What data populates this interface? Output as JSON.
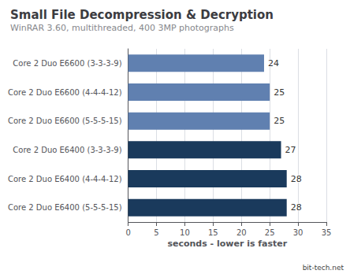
{
  "chart_data": {
    "type": "bar",
    "orientation": "horizontal",
    "title": "Small File Decompression & Decryption",
    "subtitle": "WinRAR 3.60, multithreaded, 400 3MP photographs",
    "xlabel": "seconds - lower is faster",
    "annotation": "bit-tech.net",
    "categories": [
      "Core 2 Duo E6600 (3-3-3-9)",
      "Core 2 Duo E6600 (4-4-4-12)",
      "Core 2 Duo E6600 (5-5-5-15)",
      "Core 2 Duo E6400 (3-3-3-9)",
      "Core 2 Duo E6400 (4-4-4-12)",
      "Core 2 Duo E6400 (5-5-5-15)"
    ],
    "values": [
      24,
      25,
      25,
      27,
      28,
      28
    ],
    "colors": [
      "#6080b0",
      "#6080b0",
      "#6080b0",
      "#1a3a5c",
      "#1a3a5c",
      "#1a3a5c"
    ],
    "xlim": [
      0,
      35
    ],
    "xticks": [
      0,
      5,
      10,
      15,
      20,
      25,
      30,
      35
    ],
    "grid": true,
    "data_labels": true
  }
}
